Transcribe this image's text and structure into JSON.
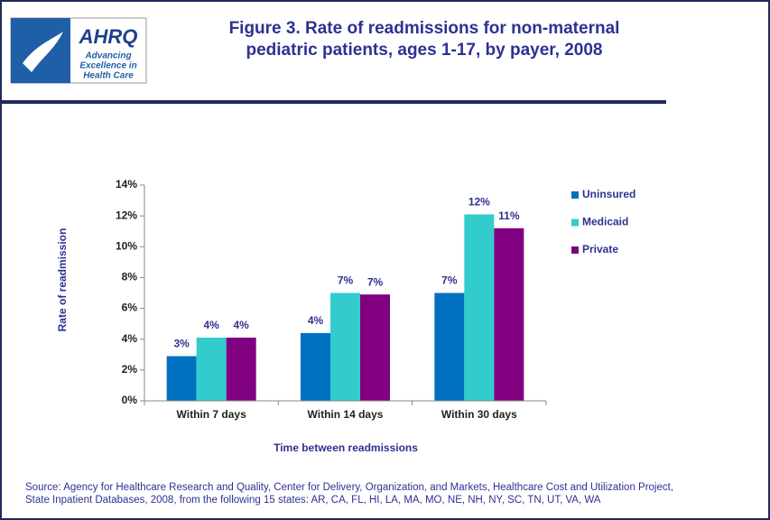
{
  "logo": {
    "name": "AHRQ",
    "tagline": [
      "Advancing",
      "Excellence in",
      "Health Care"
    ]
  },
  "chart_data": {
    "type": "bar",
    "title": [
      "Figure 3. Rate of readmissions for non-maternal",
      "pediatric patients, ages 1-17, by payer, 2008"
    ],
    "x_label": "Time between  readmissions",
    "y_label": "Rate of readmission",
    "categories": [
      "Within 7 days",
      "Within 14 days",
      "Within 30 days"
    ],
    "series": [
      {
        "name": "Uninsured",
        "color": "#0070c0",
        "values": [
          2.9,
          4.4,
          7.0
        ],
        "value_labels": [
          "3%",
          "4%",
          "7%"
        ]
      },
      {
        "name": "Medicaid",
        "color": "#33cccc",
        "values": [
          4.1,
          7.0,
          12.1
        ],
        "value_labels": [
          "4%",
          "7%",
          "12%"
        ]
      },
      {
        "name": "Private",
        "color": "#800080",
        "values": [
          4.1,
          6.9,
          11.2
        ],
        "value_labels": [
          "4%",
          "7%",
          "11%"
        ]
      }
    ],
    "ylim": [
      0,
      14
    ],
    "yticks": [
      {
        "value": 0,
        "label": "0%"
      },
      {
        "value": 2,
        "label": "2%"
      },
      {
        "value": 4,
        "label": "4%"
      },
      {
        "value": 6,
        "label": "6%"
      },
      {
        "value": 8,
        "label": "8%"
      },
      {
        "value": 10,
        "label": "10%"
      },
      {
        "value": 12,
        "label": "12%"
      },
      {
        "value": 14,
        "label": "14%"
      }
    ],
    "legend": "right"
  },
  "source": [
    "Source: Agency for Healthcare Research and Quality, Center for Delivery, Organization, and Markets, Healthcare Cost and Utilization Project,",
    "State Inpatient Databases, 2008, from the following 15 states: AR, CA, FL, HI, LA, MA, MO, NE, NH, NY, SC, TN, UT, VA, WA"
  ]
}
